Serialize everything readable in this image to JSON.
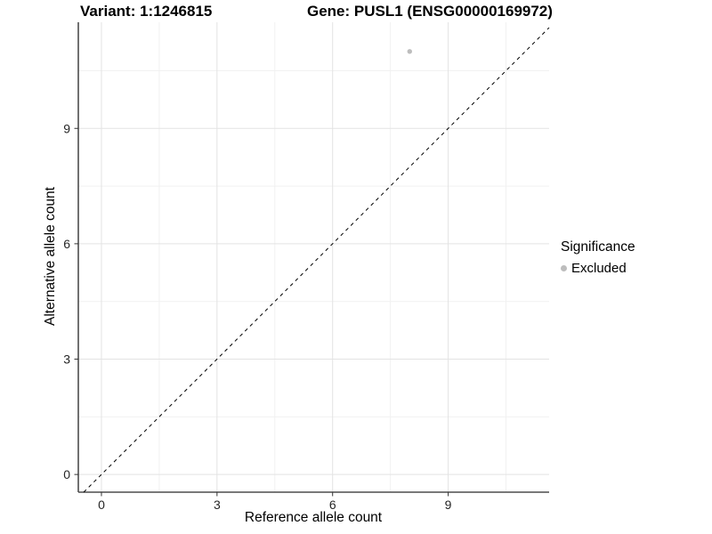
{
  "chart_data": {
    "type": "scatter",
    "titles": {
      "left": "Variant: 1:1246815",
      "right": "Gene: PUSL1 (ENSG00000169972)"
    },
    "xlabel": "Reference allele count",
    "ylabel": "Alternative allele count",
    "xticks": [
      0,
      3,
      6,
      9
    ],
    "yticks": [
      0,
      3,
      6,
      9
    ],
    "xminor": [
      1.5,
      4.5,
      7.5,
      10.5
    ],
    "yminor": [
      1.5,
      4.5,
      7.5,
      10.5
    ],
    "xlim": [
      -0.6,
      11.62
    ],
    "ylim": [
      -0.46,
      11.76
    ],
    "grid": true,
    "points": [
      {
        "x": 8,
        "y": 11,
        "series": "Excluded"
      }
    ],
    "reference_line": {
      "equation": "y = x",
      "style": "dashed"
    },
    "legend": {
      "title": "Significance",
      "position": "right",
      "entries": [
        {
          "label": "Excluded",
          "color": "#bdbdbd"
        }
      ]
    },
    "colors": {
      "point": "#bdbdbd",
      "grid_major": "#e3e3e3",
      "grid_minor": "#f1f1f1",
      "axis_line": "#4d4d4d",
      "tick_mark": "#333333",
      "tick_label": "#262626",
      "reference_line": "#000000"
    }
  }
}
